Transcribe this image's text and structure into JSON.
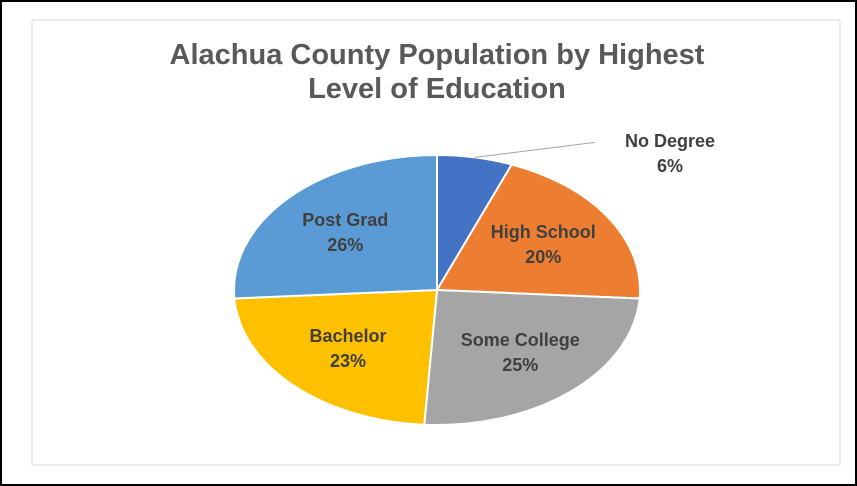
{
  "chart_data": {
    "type": "pie",
    "title": "Alachua County Population by Highest Level of Education",
    "categories": [
      "No Degree",
      "High School",
      "Some College",
      "Bachelor",
      "Post Grad"
    ],
    "values": [
      6,
      20,
      25,
      23,
      26
    ],
    "value_labels": [
      "6%",
      "20%",
      "25%",
      "23%",
      "26%"
    ],
    "colors": [
      "#4472c4",
      "#ed7d31",
      "#a5a5a5",
      "#ffc000",
      "#5b9bd5"
    ]
  }
}
